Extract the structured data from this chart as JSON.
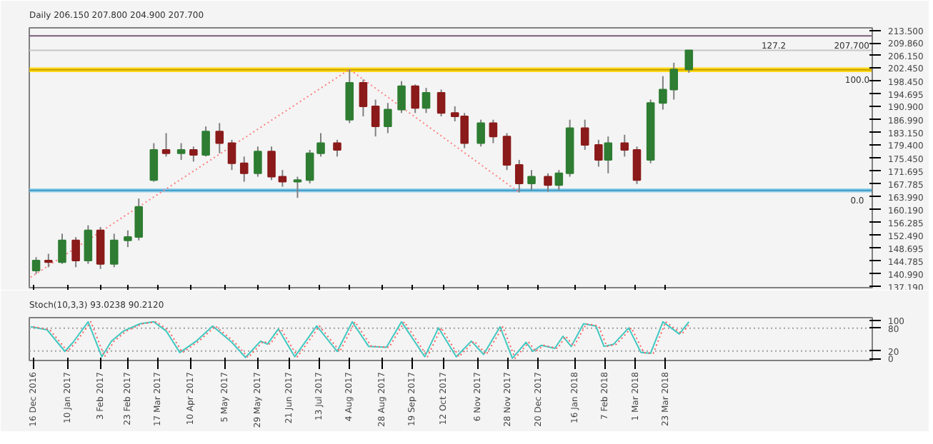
{
  "chart_data": [
    {
      "type": "candlestick",
      "title": "Daily 206.150 207.800 204.900 207.700",
      "tick_labels": "y",
      "annotations": [
        {
          "text": "100.0",
          "x": "2018-08-10",
          "y": 201.9
        },
        {
          "text": "0.0",
          "x": "2018-08-10",
          "y": 165.9
        },
        {
          "text": "127.2",
          "x": "2018-06-10",
          "y": 212.0
        }
      ],
      "x": [
        "2016-12-18",
        "2016-12-27",
        "2017-01-06",
        "2017-01-16",
        "2017-01-25",
        "2017-02-03",
        "2017-02-13",
        "2017-02-23",
        "2017-03-03",
        "2017-03-14",
        "2017-03-23",
        "2017-04-03",
        "2017-04-12",
        "2017-04-21",
        "2017-05-01",
        "2017-05-10",
        "2017-05-19",
        "2017-05-29",
        "2017-06-08",
        "2017-06-16",
        "2017-06-27",
        "2017-07-06",
        "2017-07-14",
        "2017-07-26",
        "2017-08-04",
        "2017-08-14",
        "2017-08-23",
        "2017-09-01",
        "2017-09-11",
        "2017-09-21",
        "2017-09-29",
        "2017-10-10",
        "2017-10-20",
        "2017-10-27",
        "2017-11-08",
        "2017-11-17",
        "2017-11-27",
        "2017-12-06",
        "2017-12-15",
        "2017-12-27",
        "2018-01-04",
        "2018-01-12",
        "2018-01-23",
        "2018-02-02",
        "2018-02-09",
        "2018-02-21",
        "2018-03-02",
        "2018-03-12",
        "2018-03-21",
        "2018-03-29",
        "2018-04-09"
      ],
      "ohlc": [
        [
          142,
          146,
          141,
          145
        ],
        [
          145,
          147,
          143,
          144.5
        ],
        [
          144.5,
          153,
          144,
          151
        ],
        [
          151,
          152,
          143,
          145
        ],
        [
          145,
          155.5,
          144,
          154
        ],
        [
          154,
          155,
          142.5,
          144
        ],
        [
          144,
          153,
          143,
          151
        ],
        [
          151,
          154,
          149,
          152
        ],
        [
          152,
          163.5,
          151,
          161
        ],
        [
          169,
          180,
          168.5,
          178
        ],
        [
          178,
          183,
          176,
          177
        ],
        [
          177,
          180,
          175,
          178
        ],
        [
          178,
          179,
          174.5,
          176.5
        ],
        [
          176.5,
          185,
          176,
          183.5
        ],
        [
          183.5,
          186,
          177,
          180
        ],
        [
          180,
          181,
          172,
          174
        ],
        [
          174,
          176,
          168.5,
          171
        ],
        [
          171,
          179,
          170,
          177.5
        ],
        [
          177.5,
          179,
          169,
          170
        ],
        [
          170,
          172,
          167,
          168.5
        ],
        [
          168.5,
          170,
          163.7,
          169
        ],
        [
          169,
          178,
          168,
          177
        ],
        [
          177,
          183,
          176,
          180
        ],
        [
          180,
          181,
          176,
          178
        ],
        [
          187,
          202,
          186,
          198
        ],
        [
          198,
          199,
          188,
          191
        ],
        [
          191,
          193,
          182,
          185
        ],
        [
          185,
          192,
          183,
          190
        ],
        [
          190,
          198.5,
          189,
          197
        ],
        [
          197,
          197.5,
          189,
          190.5
        ],
        [
          190.5,
          196.5,
          189,
          195
        ],
        [
          195,
          196,
          188,
          189
        ],
        [
          189,
          191,
          186.5,
          188
        ],
        [
          188,
          189,
          178.5,
          180
        ],
        [
          180,
          187,
          179,
          186
        ],
        [
          186,
          187,
          180,
          182
        ],
        [
          182,
          183,
          172,
          173.5
        ],
        [
          173.5,
          175,
          165.3,
          168
        ],
        [
          168,
          172,
          166,
          170
        ],
        [
          170,
          171,
          165.5,
          167.5
        ],
        [
          167.5,
          172,
          166,
          171
        ],
        [
          171,
          187,
          170,
          184.5
        ],
        [
          184.5,
          187,
          178,
          179.5
        ],
        [
          179.5,
          181,
          173,
          175
        ],
        [
          175,
          182,
          171,
          180
        ],
        [
          180,
          182.5,
          176,
          178
        ],
        [
          178,
          179,
          167.8,
          169
        ],
        [
          175,
          193,
          174,
          192
        ],
        [
          192,
          200,
          190,
          196
        ],
        [
          196,
          204,
          193,
          202
        ],
        [
          202,
          207.8,
          201,
          207.7
        ]
      ],
      "colors": [
        "#2e7d32",
        "#8b1a1a",
        "#2e7d32",
        "#8b1a1a",
        "#2e7d32",
        "#8b1a1a",
        "#2e7d32",
        "#2e7d32",
        "#2e7d32",
        "#2e7d32",
        "#8b1a1a",
        "#2e7d32",
        "#8b1a1a",
        "#2e7d32",
        "#8b1a1a",
        "#8b1a1a",
        "#8b1a1a",
        "#2e7d32",
        "#8b1a1a",
        "#8b1a1a",
        "#2e7d32",
        "#2e7d32",
        "#2e7d32",
        "#8b1a1a",
        "#2e7d32",
        "#8b1a1a",
        "#8b1a1a",
        "#2e7d32",
        "#2e7d32",
        "#8b1a1a",
        "#2e7d32",
        "#8b1a1a",
        "#8b1a1a",
        "#8b1a1a",
        "#2e7d32",
        "#8b1a1a",
        "#8b1a1a",
        "#8b1a1a",
        "#2e7d32",
        "#8b1a1a",
        "#2e7d32",
        "#2e7d32",
        "#8b1a1a",
        "#8b1a1a",
        "#2e7d32",
        "#8b1a1a",
        "#8b1a1a",
        "#2e7d32",
        "#2e7d32",
        "#2e7d32",
        "#2e7d32"
      ],
      "series": [
        {
          "type": "line",
          "color": "#ff7f7f",
          "line_style": "dotted",
          "x": [
            "2016-12-14",
            "2017-08-04",
            "2017-12-06"
          ],
          "values": [
            140.0,
            202.0,
            165.3
          ]
        }
      ],
      "xlim": [
        "2016-12-13",
        "2018-08-21"
      ],
      "xticks": [
        {
          "value": "2016-12-16",
          "label": null
        },
        {
          "value": "2017-01-10",
          "label": null
        },
        {
          "value": "2017-02-03",
          "label": null
        },
        {
          "value": "2017-02-23",
          "label": null
        },
        {
          "value": "2017-03-17",
          "label": null
        },
        {
          "value": "2017-04-10",
          "label": null
        },
        {
          "value": "2017-05-05",
          "label": null
        },
        {
          "value": "2017-05-29",
          "label": null
        },
        {
          "value": "2017-06-21",
          "label": null
        },
        {
          "value": "2017-07-13",
          "label": null
        },
        {
          "value": "2017-08-04",
          "label": null
        },
        {
          "value": "2017-08-28",
          "label": null
        },
        {
          "value": "2017-09-19",
          "label": null
        },
        {
          "value": "2017-10-12",
          "label": null
        },
        {
          "value": "2017-11-06",
          "label": null
        },
        {
          "value": "2017-11-28",
          "label": null
        },
        {
          "value": "2017-12-20",
          "label": null
        },
        {
          "value": "2018-01-16",
          "label": null
        },
        {
          "value": "2018-02-07",
          "label": null
        },
        {
          "value": "2018-03-01",
          "label": null
        },
        {
          "value": "2018-03-23",
          "label": null
        }
      ],
      "ylim": [
        136.9,
        214.4
      ],
      "yticks": [
        {
          "value": 137.19,
          "label": "137.190"
        },
        {
          "value": 140.99,
          "label": "140.990"
        },
        {
          "value": 144.785,
          "label": "144.785"
        },
        {
          "value": 148.695,
          "label": "148.695"
        },
        {
          "value": 152.49,
          "label": "152.490"
        },
        {
          "value": 156.285,
          "label": "156.285"
        },
        {
          "value": 160.19,
          "label": "160.190"
        },
        {
          "value": 163.99,
          "label": "163.990"
        },
        {
          "value": 167.785,
          "label": "167.785"
        },
        {
          "value": 171.695,
          "label": "171.695"
        },
        {
          "value": 175.45,
          "label": "175.450"
        },
        {
          "value": 179.4,
          "label": "179.400"
        },
        {
          "value": 183.15,
          "label": "183.150"
        },
        {
          "value": 186.99,
          "label": "186.990"
        },
        {
          "value": 190.9,
          "label": "190.900"
        },
        {
          "value": 194.695,
          "label": "194.695"
        },
        {
          "value": 198.45,
          "label": "198.450"
        },
        {
          "value": 202.45,
          "label": "202.450"
        },
        {
          "value": 206.15,
          "label": "206.150"
        },
        {
          "value": 209.86,
          "label": "209.860"
        },
        {
          "value": 213.5,
          "label": "213.500"
        }
      ],
      "bands": [
        {
          "axis": "y",
          "from": 201.2,
          "to": 202.6,
          "label": null,
          "color": "#ffd700"
        },
        {
          "axis": "y",
          "from": 165.3,
          "to": 166.5,
          "label": null,
          "color": "#8ccbe8"
        }
      ],
      "ref_lines": [
        {
          "axis": "y",
          "value": 201.9,
          "label": null,
          "color": "#c8a000"
        },
        {
          "axis": "y",
          "value": 165.9,
          "label": null,
          "color": "#3a9cc8"
        },
        {
          "axis": "y",
          "value": 212.0,
          "label": null,
          "color": "#7a5c7a"
        },
        {
          "axis": "y",
          "value": 207.7,
          "label": "207.700",
          "color": "#c8c8c8"
        }
      ]
    },
    {
      "type": "line",
      "title": "Stoch(10,3,3) 93.0238 90.2120",
      "xlim": [
        "2016-12-13",
        "2018-08-21"
      ],
      "xticks": [
        {
          "value": "2016-12-16",
          "label": "16 Dec 2016"
        },
        {
          "value": "2017-01-10",
          "label": "10 Jan 2017"
        },
        {
          "value": "2017-02-03",
          "label": "3 Feb 2017"
        },
        {
          "value": "2017-02-23",
          "label": "23 Feb 2017"
        },
        {
          "value": "2017-03-17",
          "label": "17 Mar 2017"
        },
        {
          "value": "2017-04-10",
          "label": "10 Apr 2017"
        },
        {
          "value": "2017-05-05",
          "label": "5 May 2017"
        },
        {
          "value": "2017-05-29",
          "label": "29 May 2017"
        },
        {
          "value": "2017-06-21",
          "label": "21 Jun 2017"
        },
        {
          "value": "2017-07-13",
          "label": "13 Jul 2017"
        },
        {
          "value": "2017-08-04",
          "label": "4 Aug 2017"
        },
        {
          "value": "2017-08-28",
          "label": "28 Aug 2017"
        },
        {
          "value": "2017-09-19",
          "label": "19 Sep 2017"
        },
        {
          "value": "2017-10-12",
          "label": "12 Oct 2017"
        },
        {
          "value": "2017-11-06",
          "label": "6 Nov 2017"
        },
        {
          "value": "2017-11-28",
          "label": "28 Nov 2017"
        },
        {
          "value": "2017-12-20",
          "label": "20 Dec 2017"
        },
        {
          "value": "2018-01-16",
          "label": "16 Jan 2018"
        },
        {
          "value": "2018-02-07",
          "label": "7 Feb 2018"
        },
        {
          "value": "2018-03-01",
          "label": "1 Mar 2018"
        },
        {
          "value": "2018-03-23",
          "label": "23 Mar 2018"
        }
      ],
      "ylim": [
        -5,
        108
      ],
      "yticks": [
        0,
        20,
        80,
        100
      ],
      "ref_lines": [
        {
          "axis": "y",
          "value": 20,
          "label": null,
          "color": "#a0a0a0",
          "line_style": "dotted"
        },
        {
          "axis": "y",
          "value": 80,
          "label": null,
          "color": "#a0a0a0",
          "line_style": "dotted"
        }
      ],
      "series": [
        {
          "color": "#40c8c0",
          "line_style": "solid",
          "x": [
            "2016-12-14",
            "2016-12-26",
            "2017-01-08",
            "2017-01-14",
            "2017-01-25",
            "2017-02-04",
            "2017-02-11",
            "2017-02-20",
            "2017-03-04",
            "2017-03-14",
            "2017-03-23",
            "2017-04-02",
            "2017-04-14",
            "2017-04-26",
            "2017-05-10",
            "2017-05-20",
            "2017-05-31",
            "2017-06-05",
            "2017-06-13",
            "2017-06-25",
            "2017-07-11",
            "2017-07-26",
            "2017-08-06",
            "2017-08-18",
            "2017-08-31",
            "2017-09-11",
            "2017-09-28",
            "2017-10-08",
            "2017-10-21",
            "2017-11-01",
            "2017-11-10",
            "2017-11-22",
            "2017-12-01",
            "2017-12-11",
            "2017-12-16",
            "2017-12-22",
            "2018-01-01",
            "2018-01-07",
            "2018-01-13",
            "2018-01-22",
            "2018-01-31",
            "2018-02-06",
            "2018-02-13",
            "2018-02-24",
            "2018-03-05",
            "2018-03-12",
            "2018-03-21",
            "2018-04-02",
            "2018-04-09"
          ],
          "values": [
            84,
            76,
            19,
            43,
            97,
            5,
            46,
            73,
            92,
            97,
            73,
            16,
            46,
            86,
            43,
            3,
            46,
            38,
            78,
            5,
            86,
            19,
            97,
            32,
            30,
            97,
            5,
            81,
            5,
            46,
            11,
            84,
            1,
            43,
            19,
            35,
            27,
            59,
            32,
            92,
            86,
            32,
            38,
            81,
            16,
            14,
            97,
            65,
            97
          ]
        },
        {
          "color": "#ff6060",
          "line_style": "dotted",
          "x": [
            "2016-12-16",
            "2016-12-28",
            "2017-01-10",
            "2017-01-16",
            "2017-01-27",
            "2017-02-06",
            "2017-02-13",
            "2017-02-22",
            "2017-03-06",
            "2017-03-16",
            "2017-03-25",
            "2017-04-04",
            "2017-04-16",
            "2017-04-28",
            "2017-05-12",
            "2017-05-22",
            "2017-06-02",
            "2017-06-07",
            "2017-06-15",
            "2017-06-27",
            "2017-07-13",
            "2017-07-28",
            "2017-08-08",
            "2017-08-20",
            "2017-09-02",
            "2017-09-13",
            "2017-09-30",
            "2017-10-10",
            "2017-10-23",
            "2017-11-03",
            "2017-11-12",
            "2017-11-24",
            "2017-12-03",
            "2017-12-13",
            "2017-12-18",
            "2017-12-24",
            "2018-01-03",
            "2018-01-09",
            "2018-01-15",
            "2018-01-24",
            "2018-02-02",
            "2018-02-08",
            "2018-02-15",
            "2018-02-26",
            "2018-03-07",
            "2018-03-14",
            "2018-03-23",
            "2018-04-04",
            "2018-04-09"
          ],
          "values": [
            84,
            76,
            19,
            43,
            97,
            5,
            46,
            73,
            92,
            97,
            73,
            16,
            46,
            86,
            43,
            3,
            46,
            38,
            78,
            5,
            86,
            19,
            97,
            32,
            30,
            97,
            5,
            81,
            5,
            46,
            11,
            84,
            1,
            43,
            19,
            35,
            27,
            59,
            32,
            92,
            86,
            32,
            38,
            81,
            16,
            14,
            97,
            65,
            90
          ]
        }
      ]
    }
  ]
}
